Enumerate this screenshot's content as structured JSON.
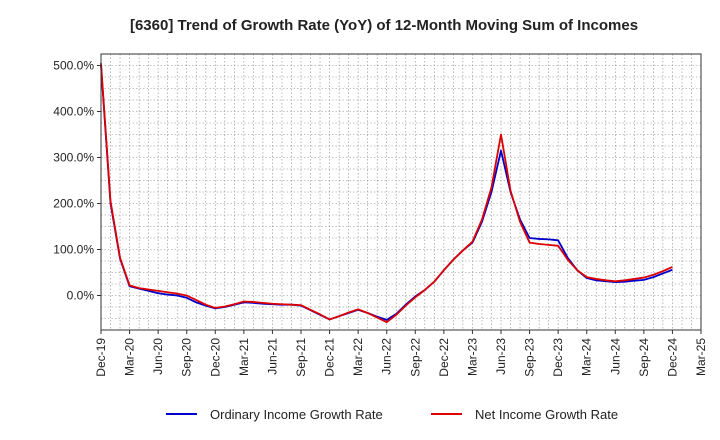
{
  "chart_data": {
    "type": "line",
    "title": "[6360]  Trend of Growth Rate (YoY) of 12-Month Moving Sum of Incomes",
    "xlabel": "",
    "ylabel": "",
    "ylim": [
      -75,
      525
    ],
    "y_ticks": [
      0,
      100,
      200,
      300,
      400,
      500
    ],
    "y_tick_labels": [
      "0.0%",
      "100.0%",
      "200.0%",
      "300.0%",
      "400.0%",
      "500.0%"
    ],
    "x_tick_labels": [
      "Dec-19",
      "Mar-20",
      "Jun-20",
      "Sep-20",
      "Dec-20",
      "Mar-21",
      "Jun-21",
      "Sep-21",
      "Dec-21",
      "Mar-22",
      "Jun-22",
      "Sep-22",
      "Dec-22",
      "Mar-23",
      "Jun-23",
      "Sep-23",
      "Dec-23",
      "Mar-24",
      "Jun-24",
      "Sep-24",
      "Dec-24",
      "Mar-25"
    ],
    "months": [
      "Dec-19",
      "Jan-20",
      "Feb-20",
      "Mar-20",
      "Apr-20",
      "May-20",
      "Jun-20",
      "Jul-20",
      "Aug-20",
      "Sep-20",
      "Oct-20",
      "Nov-20",
      "Dec-20",
      "Jan-21",
      "Feb-21",
      "Mar-21",
      "Apr-21",
      "May-21",
      "Jun-21",
      "Jul-21",
      "Aug-21",
      "Sep-21",
      "Oct-21",
      "Nov-21",
      "Dec-21",
      "Jan-22",
      "Feb-22",
      "Mar-22",
      "Apr-22",
      "May-22",
      "Jun-22",
      "Jul-22",
      "Aug-22",
      "Sep-22",
      "Oct-22",
      "Nov-22",
      "Dec-22",
      "Jan-23",
      "Feb-23",
      "Mar-23",
      "Apr-23",
      "May-23",
      "Jun-23",
      "Jul-23",
      "Aug-23",
      "Sep-23",
      "Oct-23",
      "Nov-23",
      "Dec-23",
      "Jan-24",
      "Feb-24",
      "Mar-24",
      "Apr-24",
      "May-24",
      "Jun-24",
      "Jul-24",
      "Aug-24",
      "Sep-24",
      "Oct-24",
      "Nov-24",
      "Dec-24"
    ],
    "series": [
      {
        "name": "Ordinary Income Growth Rate",
        "color": "#0000cc",
        "values": [
          500,
          200,
          80,
          20,
          15,
          10,
          5,
          2,
          0,
          -5,
          -15,
          -22,
          -28,
          -25,
          -20,
          -15,
          -16,
          -18,
          -19,
          -20,
          -20,
          -22,
          -32,
          -42,
          -52,
          -45,
          -38,
          -31,
          -38,
          -46,
          -53,
          -40,
          -20,
          -2,
          12,
          30,
          55,
          78,
          98,
          115,
          160,
          225,
          315,
          225,
          165,
          125,
          123,
          122,
          120,
          82,
          55,
          38,
          33,
          31,
          29,
          30,
          32,
          34,
          40,
          48,
          56
        ]
      },
      {
        "name": "Net Income Growth Rate",
        "color": "#dd0000",
        "values": [
          505,
          205,
          82,
          22,
          16,
          13,
          10,
          7,
          4,
          0,
          -10,
          -20,
          -27,
          -24,
          -19,
          -13,
          -14,
          -16,
          -18,
          -19,
          -20,
          -21,
          -31,
          -41,
          -52,
          -45,
          -37,
          -30,
          -38,
          -48,
          -58,
          -42,
          -22,
          -4,
          12,
          30,
          55,
          78,
          98,
          117,
          165,
          235,
          350,
          228,
          160,
          115,
          112,
          110,
          108,
          78,
          55,
          40,
          36,
          33,
          31,
          33,
          36,
          39,
          45,
          53,
          62
        ]
      }
    ],
    "legend_position": "bottom",
    "grid": true
  }
}
